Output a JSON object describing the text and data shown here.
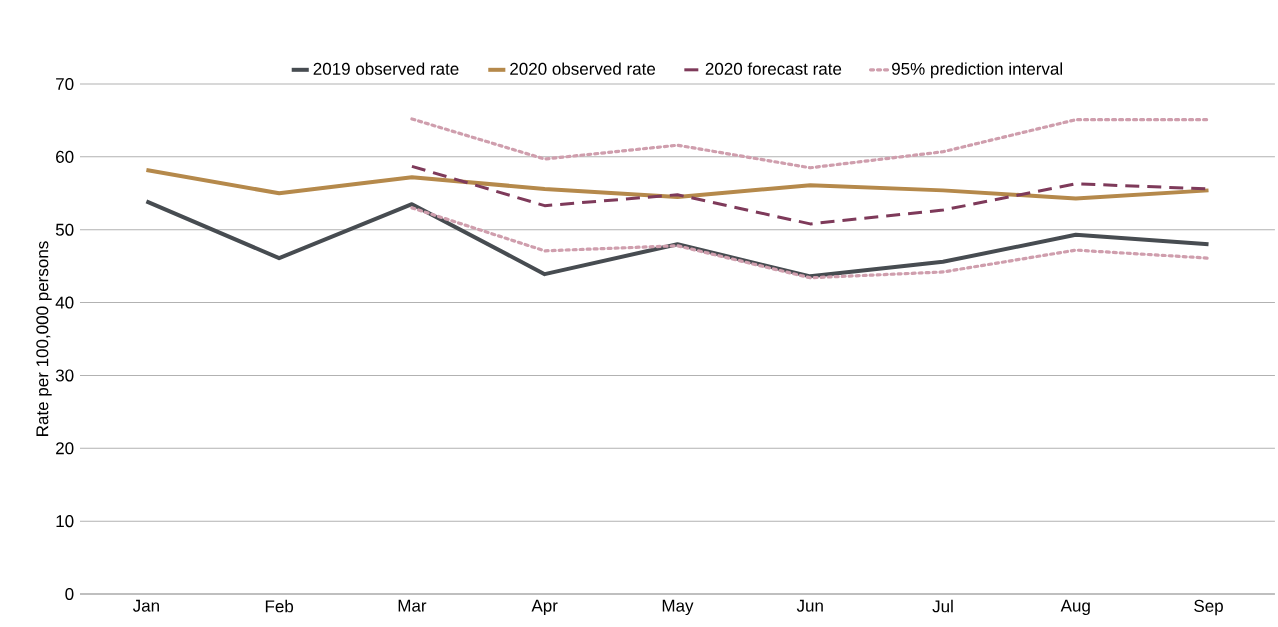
{
  "chart_data": {
    "type": "line",
    "ylabel": "Rate per 100,000 persons",
    "categories": [
      "Jan",
      "Feb",
      "Mar",
      "Apr",
      "May",
      "Jun",
      "Jul",
      "Aug",
      "Sep"
    ],
    "series": [
      {
        "name": "2019 observed rate",
        "color": "#474c51",
        "line_style": "solid",
        "values": [
          53.9,
          46.1,
          53.5,
          43.9,
          48.0,
          43.6,
          45.6,
          49.3,
          48.0
        ]
      },
      {
        "name": "2020 observed rate",
        "color": "#b5894b",
        "line_style": "solid",
        "values": [
          58.2,
          55.0,
          57.2,
          55.6,
          54.5,
          56.1,
          55.4,
          54.3,
          55.4
        ]
      },
      {
        "name": "2020 forecast rate",
        "color": "#7e3a5a",
        "line_style": "dashed",
        "values": [
          null,
          null,
          58.7,
          53.3,
          54.8,
          50.8,
          52.7,
          56.3,
          55.6
        ]
      },
      {
        "name": "95% prediction interval",
        "color": "#cf9ead",
        "line_style": "dotted",
        "values": [
          null,
          null,
          65.2,
          59.7,
          61.6,
          58.5,
          60.7,
          65.1,
          65.1
        ]
      },
      {
        "color": "#cf9ead",
        "line_style": "dotted",
        "values": [
          null,
          null,
          53.0,
          47.1,
          47.8,
          43.4,
          44.2,
          47.2,
          46.1
        ]
      }
    ],
    "ylim": [
      0,
      70
    ],
    "yticks": [
      0,
      10,
      20,
      30,
      40,
      50,
      60,
      70
    ],
    "grid": "y",
    "legend": "top",
    "marker": "none"
  }
}
